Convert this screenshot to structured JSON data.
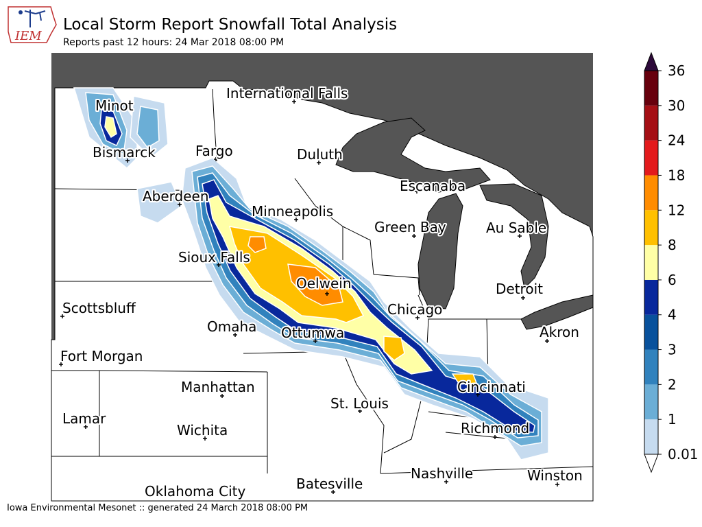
{
  "header": {
    "logo_text": "IEM",
    "title": "Local Storm Report Snowfall Total Analysis",
    "subtitle": "Reports past 12 hours: 24 Mar 2018 08:00 PM"
  },
  "footer": {
    "text": "Iowa Environmental Mesonet :: generated 24 March 2018 08:00 PM"
  },
  "colors": {
    "land_outside": "#555555",
    "land": "#ffffff",
    "water": "#555555",
    "borders": "#000000"
  },
  "cities": [
    {
      "name": "International Falls"
    },
    {
      "name": "Minot"
    },
    {
      "name": "Bismarck"
    },
    {
      "name": "Fargo"
    },
    {
      "name": "Duluth"
    },
    {
      "name": "Escanaba"
    },
    {
      "name": "Aberdeen"
    },
    {
      "name": "Minneapolis"
    },
    {
      "name": "Green Bay"
    },
    {
      "name": "Au Sable"
    },
    {
      "name": "Sioux Falls"
    },
    {
      "name": "Oelwein"
    },
    {
      "name": "Detroit"
    },
    {
      "name": "Scottsbluff"
    },
    {
      "name": "Chicago"
    },
    {
      "name": "Omaha"
    },
    {
      "name": "Ottumwa"
    },
    {
      "name": "Akron"
    },
    {
      "name": "Fort Morgan"
    },
    {
      "name": "Manhattan"
    },
    {
      "name": "Cincinnati"
    },
    {
      "name": "St. Louis"
    },
    {
      "name": "Lamar"
    },
    {
      "name": "Wichita"
    },
    {
      "name": "Richmond"
    },
    {
      "name": "Nashville"
    },
    {
      "name": "Winston"
    },
    {
      "name": "Batesville"
    },
    {
      "name": "Oklahoma City"
    }
  ],
  "colorbar": {
    "levels": [
      "0.01",
      "1",
      "2",
      "3",
      "4",
      "6",
      "8",
      "12",
      "18",
      "24",
      "30",
      "36"
    ],
    "colors": [
      "#c6dbef",
      "#6baed6",
      "#3182bd",
      "#08519c",
      "#08289c",
      "#ffffa6",
      "#ffc000",
      "#ff8c00",
      "#e31a1c",
      "#a50f15",
      "#67000d"
    ],
    "over_color": "#2d0a3a",
    "under_color": "#ffffff"
  }
}
